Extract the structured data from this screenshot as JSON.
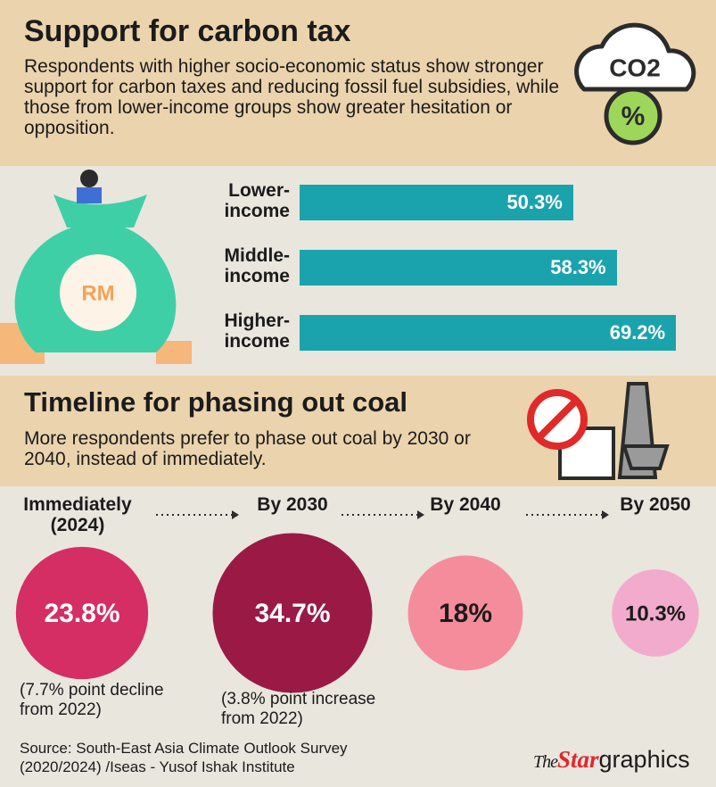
{
  "chart_data": [
    {
      "type": "bar",
      "orientation": "horizontal",
      "title": "Support for carbon tax",
      "subtitle": "Respondents with higher socio-economic status show stronger support for carbon taxes and reducing fossil fuel subsidies, while those from lower-income groups show greater hesitation or opposition.",
      "categories": [
        "Lower-income",
        "Middle-income",
        "Higher-income"
      ],
      "values": [
        50.3,
        58.3,
        69.2
      ],
      "value_labels": [
        "50.3%",
        "58.3%",
        "69.2%"
      ],
      "color": "#1ba3ad"
    },
    {
      "type": "bubble",
      "title": "Timeline for phasing out coal",
      "subtitle": "More respondents prefer to phase out coal by 2030 or 2040, instead of immediately.",
      "categories": [
        "Immediately (2024)",
        "By 2030",
        "By 2040",
        "By 2050"
      ],
      "values": [
        23.8,
        34.7,
        18,
        10.3
      ],
      "value_labels": [
        "23.8%",
        "34.7%",
        "18%",
        "10.3%"
      ],
      "colors": [
        "#d42e64",
        "#9a1a45",
        "#f58c9c",
        "#f2abcc"
      ],
      "notes": [
        "(7.7% point decline from 2022)",
        "(3.8% point increase from 2022)",
        null,
        null
      ]
    }
  ],
  "icons": {
    "co2": "CO2",
    "percent": "%",
    "money": "RM"
  },
  "footer": {
    "source": "Source: South-East Asia Climate Outlook Survey (2020/2024) /Iseas - Yusof Ishak Institute",
    "credit_the": "The",
    "credit_star": "Star",
    "credit_graphics": "graphics"
  }
}
